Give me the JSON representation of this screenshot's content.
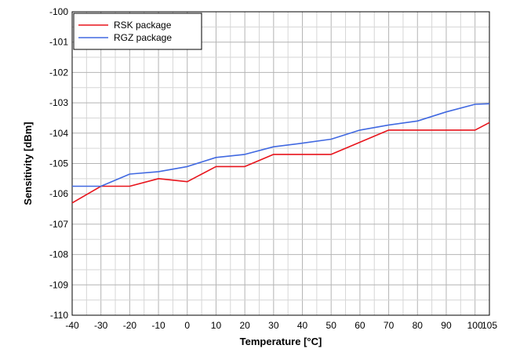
{
  "chart_data": {
    "type": "line",
    "xlabel": "Temperature [°C]",
    "ylabel": "Sensitivity [dBm]",
    "xlim": [
      -40,
      105
    ],
    "ylim": [
      -110,
      -100
    ],
    "xticks": [
      -40,
      -30,
      -20,
      -10,
      0,
      10,
      20,
      30,
      40,
      50,
      60,
      70,
      80,
      90,
      100,
      105
    ],
    "yticks": [
      -100,
      -101,
      -102,
      -103,
      -104,
      -105,
      -106,
      -107,
      -108,
      -109,
      -110
    ],
    "grid": true,
    "legend_position": "top-left",
    "series": [
      {
        "name": "RSK package",
        "color": "#e8141c",
        "x": [
          -40,
          -30,
          -20,
          -10,
          0,
          10,
          20,
          30,
          40,
          50,
          60,
          70,
          80,
          90,
          100,
          105
        ],
        "y": [
          -106.3,
          -105.75,
          -105.75,
          -105.5,
          -105.6,
          -105.1,
          -105.1,
          -104.7,
          -104.7,
          -104.7,
          -104.3,
          -103.9,
          -103.9,
          -103.9,
          -103.9,
          -103.65
        ]
      },
      {
        "name": "RGZ package",
        "color": "#4169e1",
        "x": [
          -40,
          -30,
          -20,
          -10,
          0,
          10,
          20,
          30,
          40,
          50,
          60,
          70,
          80,
          90,
          100,
          105
        ],
        "y": [
          -105.75,
          -105.75,
          -105.35,
          -105.27,
          -105.1,
          -104.8,
          -104.7,
          -104.45,
          -104.33,
          -104.2,
          -103.9,
          -103.73,
          -103.6,
          -103.3,
          -103.05,
          -103.03
        ]
      }
    ]
  }
}
